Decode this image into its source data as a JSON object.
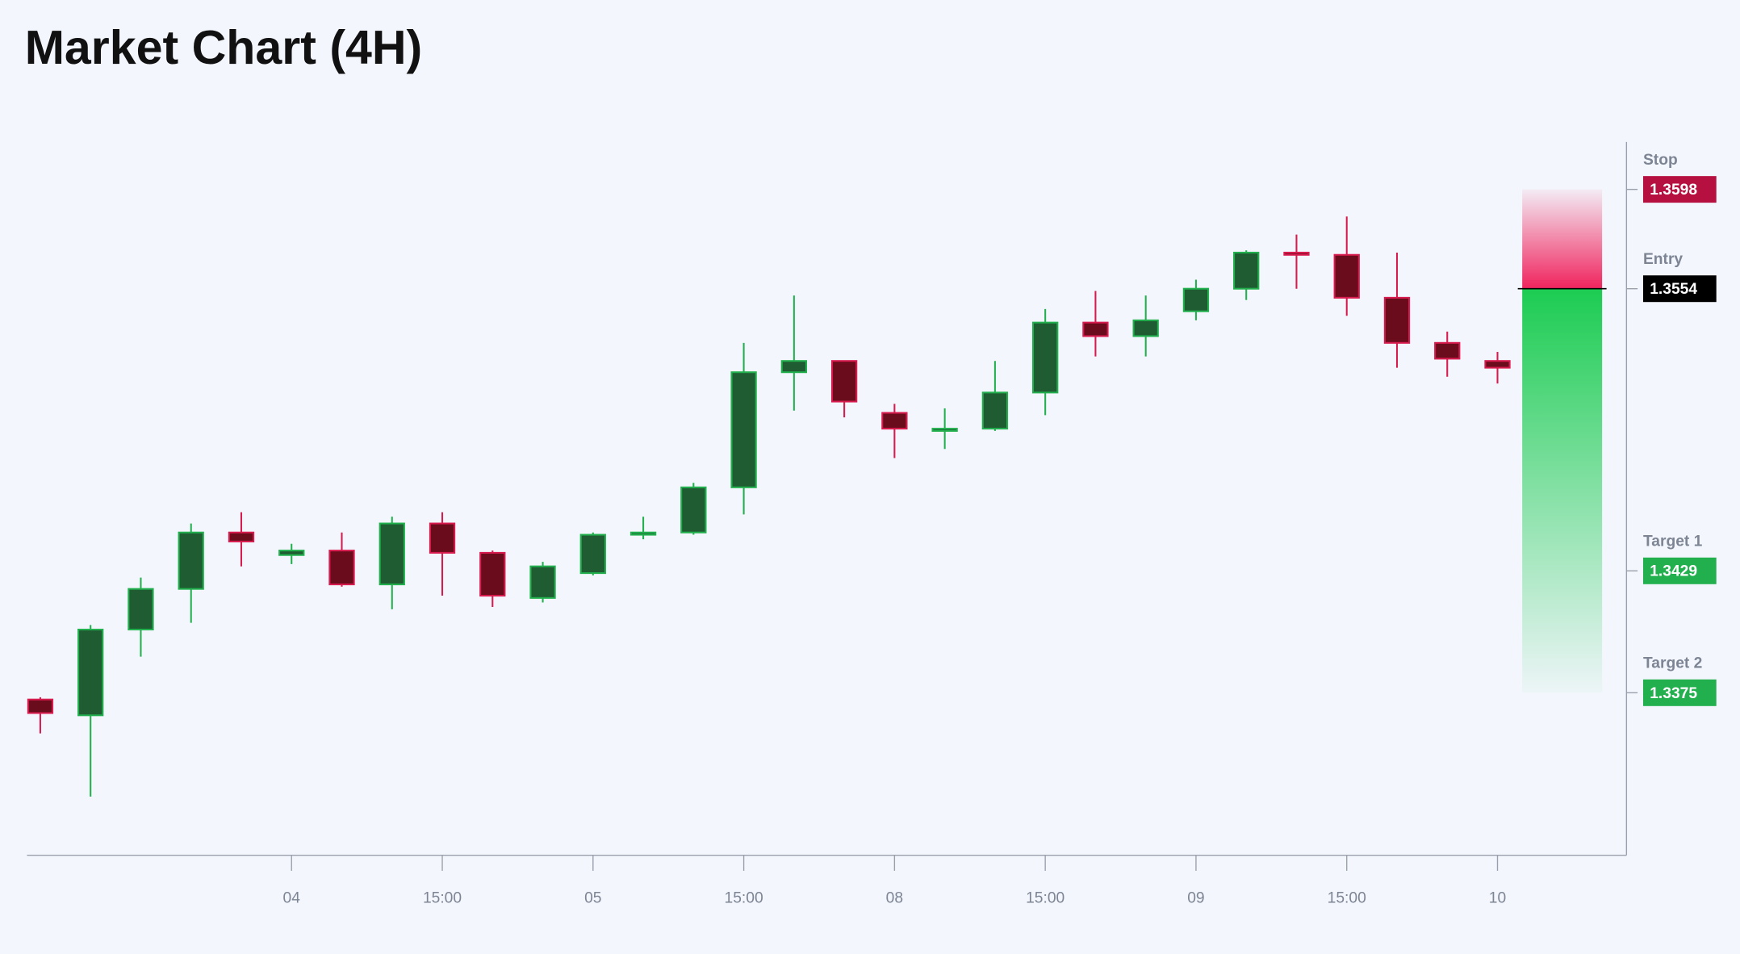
{
  "chart_data": {
    "type": "candlestick",
    "title": "Market Chart (4H)",
    "categories": [
      null,
      null,
      null,
      null,
      null,
      "04",
      null,
      null,
      "15:00",
      null,
      null,
      "05",
      null,
      null,
      "15:00",
      null,
      null,
      "08",
      null,
      null,
      "15:00",
      null,
      null,
      "09",
      null,
      null,
      "15:00",
      null,
      null,
      "10"
    ],
    "open": [
      1.3372,
      1.3365,
      1.3403,
      1.3421,
      1.3446,
      1.3436,
      1.3438,
      1.3423,
      1.345,
      1.3437,
      1.3417,
      1.3428,
      1.3445,
      1.3446,
      1.3466,
      1.3517,
      1.3522,
      1.3499,
      1.3491,
      1.3492,
      1.3508,
      1.3539,
      1.3533,
      1.3544,
      1.3554,
      1.357,
      1.3569,
      1.355,
      1.353,
      1.3522
    ],
    "high": [
      1.3373,
      1.3405,
      1.3426,
      1.345,
      1.3455,
      1.3441,
      1.3446,
      1.3453,
      1.3455,
      1.3438,
      1.3433,
      1.3446,
      1.3453,
      1.3468,
      1.353,
      1.3551,
      1.3522,
      1.3503,
      1.3501,
      1.3522,
      1.3545,
      1.3553,
      1.3551,
      1.3558,
      1.3571,
      1.3578,
      1.3586,
      1.357,
      1.3535,
      1.3526
    ],
    "low": [
      1.3357,
      1.3329,
      1.3391,
      1.3406,
      1.3431,
      1.3432,
      1.3422,
      1.3412,
      1.3418,
      1.3413,
      1.3415,
      1.3427,
      1.3443,
      1.3445,
      1.3454,
      1.35,
      1.3497,
      1.3479,
      1.3483,
      1.3491,
      1.3498,
      1.3524,
      1.3524,
      1.354,
      1.3549,
      1.3554,
      1.3542,
      1.3519,
      1.3515,
      1.3512
    ],
    "close": [
      1.3366,
      1.3403,
      1.3421,
      1.3446,
      1.3442,
      1.3438,
      1.3423,
      1.345,
      1.3437,
      1.3418,
      1.3431,
      1.3445,
      1.3446,
      1.3466,
      1.3517,
      1.3522,
      1.3504,
      1.3492,
      1.3492,
      1.3508,
      1.3539,
      1.3533,
      1.354,
      1.3554,
      1.357,
      1.3569,
      1.355,
      1.353,
      1.3523,
      1.3519
    ],
    "ylim": [
      1.3303,
      1.3619
    ],
    "up_color": "#22b04e",
    "down_color": "#d81b4e",
    "levels": [
      {
        "name": "Stop",
        "value": 1.3598,
        "color": "#b5103f"
      },
      {
        "name": "Entry",
        "value": 1.3554,
        "color": "#000000"
      },
      {
        "name": "Target 1",
        "value": 1.3429,
        "color": "#22b04e"
      },
      {
        "name": "Target 2",
        "value": 1.3375,
        "color": "#22b04e"
      }
    ]
  }
}
